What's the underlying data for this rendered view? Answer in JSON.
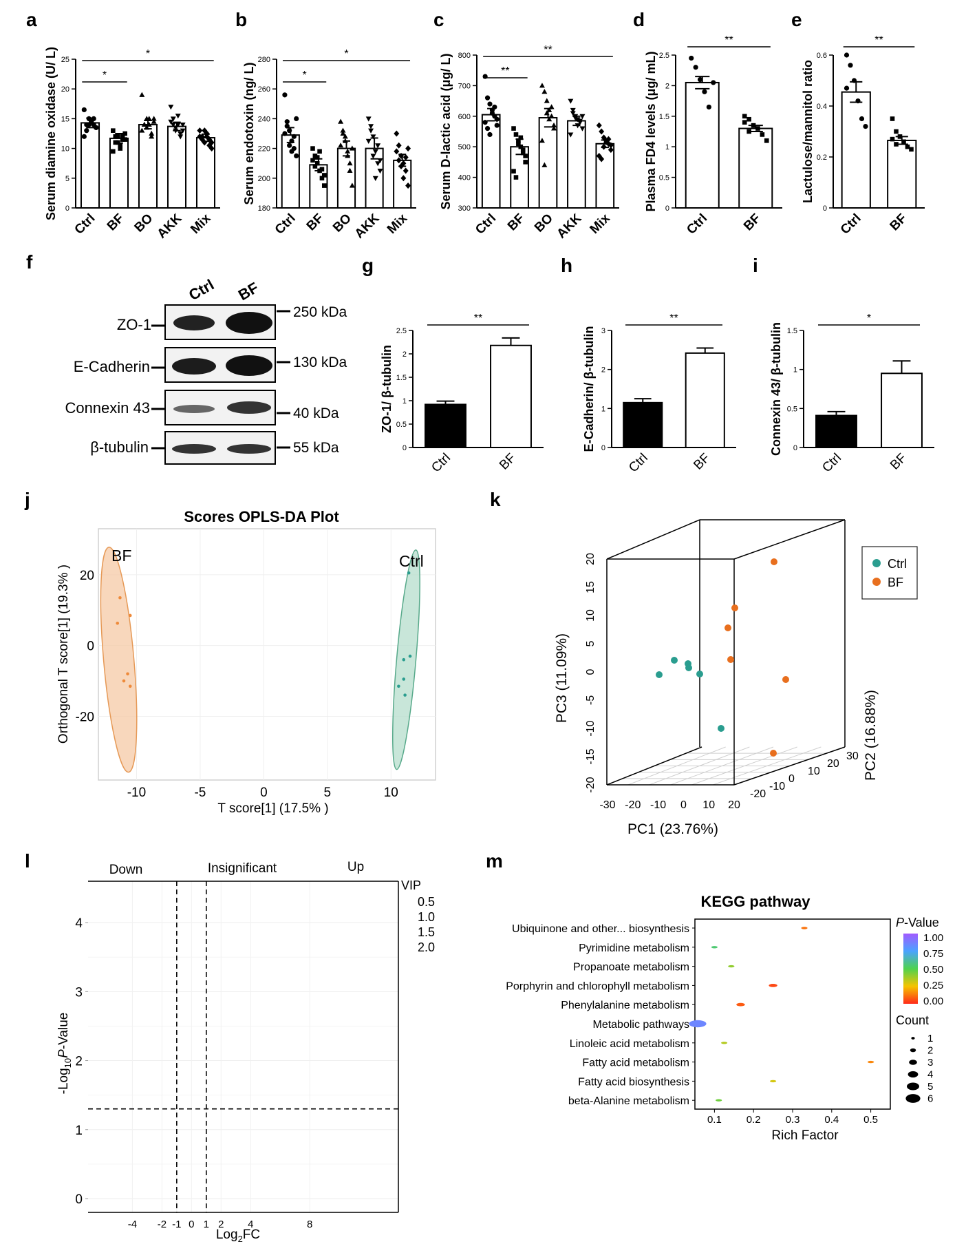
{
  "chart_data": [
    {
      "id": "a",
      "letter": "a",
      "type": "bar",
      "ylabel": "Serum diamine oxidase (U/ L)",
      "categories": [
        "Ctrl",
        "BF",
        "BO",
        "AKK",
        "Mix"
      ],
      "values": [
        14.3,
        11.7,
        14.0,
        13.7,
        11.8
      ],
      "errors": [
        0.8,
        0.8,
        0.7,
        0.7,
        0.6
      ],
      "ylim": [
        0,
        25
      ],
      "yticks": [
        0,
        5,
        10,
        15,
        20,
        25
      ],
      "points": [
        [
          16.5,
          13,
          14,
          14.5,
          15,
          13.5,
          12,
          14,
          15,
          14.5,
          14,
          13.5
        ],
        [
          13,
          12,
          11,
          10,
          11.5,
          12.5,
          9.5,
          11,
          12,
          10.5,
          12,
          11.5
        ],
        [
          19,
          14,
          13.5,
          15,
          12,
          14.5,
          13,
          14,
          15,
          14,
          12.5,
          15
        ],
        [
          17,
          15,
          13.5,
          14,
          12,
          13,
          14.5,
          14,
          13,
          15.5,
          12.5,
          14
        ],
        [
          13,
          12,
          11,
          12.5,
          11.5,
          10,
          12,
          11.5,
          13,
          12,
          10.5,
          11
        ]
      ],
      "sig": [
        {
          "from": 0,
          "to": 1,
          "label": "*"
        },
        {
          "from": 0,
          "to": 4,
          "label": "*"
        }
      ]
    },
    {
      "id": "b",
      "letter": "b",
      "type": "bar",
      "ylabel": "Serum endotoxin (ng/ L)",
      "categories": [
        "Ctrl",
        "BF",
        "BO",
        "AKK",
        "Mix"
      ],
      "values": [
        229,
        209,
        220,
        220,
        212
      ],
      "errors": [
        5,
        4,
        5,
        7,
        4
      ],
      "ylim": [
        180,
        280
      ],
      "yticks": [
        180,
        200,
        220,
        240,
        260,
        280
      ],
      "points": [
        [
          256,
          238,
          232,
          225,
          220,
          215,
          230,
          235,
          222,
          218,
          228,
          240
        ],
        [
          220,
          215,
          210,
          205,
          200,
          195,
          212,
          208,
          214,
          218,
          206,
          202
        ],
        [
          238,
          230,
          225,
          218,
          210,
          195,
          222,
          232,
          228,
          215,
          205,
          220
        ],
        [
          240,
          235,
          228,
          218,
          210,
          205,
          225,
          232,
          215,
          200,
          222,
          212
        ],
        [
          230,
          222,
          215,
          210,
          205,
          195,
          218,
          212,
          208,
          200,
          214,
          220
        ]
      ],
      "sig": [
        {
          "from": 0,
          "to": 1,
          "label": "*"
        },
        {
          "from": 0,
          "to": 4,
          "label": "*"
        }
      ]
    },
    {
      "id": "c",
      "letter": "c",
      "type": "bar",
      "ylabel": "Serum D-lactic acid (μg/ L)",
      "categories": [
        "Ctrl",
        "BF",
        "BO",
        "AKK",
        "Mix"
      ],
      "values": [
        605,
        500,
        595,
        585,
        510
      ],
      "errors": [
        20,
        25,
        30,
        15,
        12
      ],
      "ylim": [
        300,
        800
      ],
      "yticks": [
        300,
        400,
        500,
        600,
        700,
        800
      ],
      "points": [
        [
          730,
          660,
          640,
          620,
          600,
          590,
          580,
          560,
          540,
          610,
          630,
          570
        ],
        [
          560,
          540,
          520,
          500,
          480,
          450,
          420,
          400,
          510,
          530,
          490,
          470
        ],
        [
          700,
          680,
          650,
          620,
          600,
          560,
          520,
          440,
          610,
          590,
          630,
          570
        ],
        [
          650,
          620,
          600,
          590,
          580,
          560,
          540,
          610,
          595,
          570,
          585,
          600
        ],
        [
          570,
          550,
          530,
          520,
          510,
          490,
          470,
          460,
          500,
          515,
          525,
          505
        ]
      ],
      "sig": [
        {
          "from": 0,
          "to": 1,
          "label": "**"
        },
        {
          "from": 0,
          "to": 4,
          "label": "**"
        }
      ]
    },
    {
      "id": "d",
      "letter": "d",
      "type": "bar",
      "ylabel": "Plasma FD4 levels (μg/ mL)",
      "categories": [
        "Ctrl",
        "BF"
      ],
      "values": [
        2.05,
        1.3
      ],
      "errors": [
        0.1,
        0.05
      ],
      "ylim": [
        0,
        2.5
      ],
      "yticks": [
        0,
        0.5,
        1.0,
        1.5,
        2.0,
        2.5
      ],
      "points": [
        [
          2.45,
          2.3,
          2.1,
          1.9,
          1.65,
          2.05
        ],
        [
          1.5,
          1.45,
          1.35,
          1.3,
          1.2,
          1.1,
          1.4,
          1.25
        ]
      ],
      "sig": [
        {
          "from": 0,
          "to": 1,
          "label": "**"
        }
      ]
    },
    {
      "id": "e",
      "letter": "e",
      "type": "bar",
      "ylabel": "Lactulose/mannitol ratio",
      "categories": [
        "Ctrl",
        "BF"
      ],
      "values": [
        0.455,
        0.265
      ],
      "errors": [
        0.04,
        0.015
      ],
      "ylim": [
        0,
        0.6
      ],
      "yticks": [
        0,
        0.2,
        0.4,
        0.6
      ],
      "points": [
        [
          0.6,
          0.56,
          0.5,
          0.42,
          0.35,
          0.32,
          0.47
        ],
        [
          0.35,
          0.3,
          0.28,
          0.26,
          0.24,
          0.23,
          0.27,
          0.25
        ]
      ],
      "sig": [
        {
          "from": 0,
          "to": 1,
          "label": "**"
        }
      ]
    },
    {
      "id": "g",
      "letter": "g",
      "type": "bar",
      "ylabel": "ZO-1/ β-tubulin",
      "categories": [
        "Ctrl",
        "BF"
      ],
      "values": [
        0.92,
        2.18
      ],
      "errors": [
        0.07,
        0.16
      ],
      "fills": [
        "#000000",
        "#ffffff"
      ],
      "ylim": [
        0,
        2.5
      ],
      "yticks": [
        0,
        0.5,
        1.0,
        1.5,
        2.0,
        2.5
      ],
      "sig": [
        {
          "from": 0,
          "to": 1,
          "label": "**"
        }
      ]
    },
    {
      "id": "h",
      "letter": "h",
      "type": "bar",
      "ylabel": "E-Cadherin/ β-tubulin",
      "categories": [
        "Ctrl",
        "BF"
      ],
      "values": [
        1.15,
        2.42
      ],
      "errors": [
        0.1,
        0.13
      ],
      "fills": [
        "#000000",
        "#ffffff"
      ],
      "ylim": [
        0,
        3
      ],
      "yticks": [
        0,
        1,
        2,
        3
      ],
      "sig": [
        {
          "from": 0,
          "to": 1,
          "label": "**"
        }
      ]
    },
    {
      "id": "i",
      "letter": "i",
      "type": "bar",
      "ylabel": "Connexin 43/ β-tubulin",
      "categories": [
        "Ctrl",
        "BF"
      ],
      "values": [
        0.41,
        0.95
      ],
      "errors": [
        0.05,
        0.16
      ],
      "fills": [
        "#000000",
        "#ffffff"
      ],
      "ylim": [
        0,
        1.5
      ],
      "yticks": [
        0,
        0.5,
        1.0,
        1.5
      ],
      "sig": [
        {
          "from": 0,
          "to": 1,
          "label": "*"
        }
      ]
    },
    {
      "id": "j",
      "letter": "j",
      "type": "scatter",
      "title": "Scores OPLS-DA Plot",
      "xlabel": "T score[1] (17.5% )",
      "ylabel": "Orthogonal T score[1] (19.3% )",
      "xlim": [
        -13,
        13.5
      ],
      "ylim": [
        -38,
        33
      ],
      "xticks": [
        -10,
        -5,
        0,
        5,
        10
      ],
      "yticks": [
        -20,
        0,
        20
      ],
      "groups": [
        {
          "name": "BF",
          "color": "#ee8a3a",
          "points": [
            [
              -11.3,
              13.5
            ],
            [
              -10.5,
              8.5
            ],
            [
              -11.5,
              6.3
            ],
            [
              -10.7,
              -8
            ],
            [
              -11,
              -10
            ],
            [
              -10.5,
              -11.5
            ]
          ]
        },
        {
          "name": "Ctrl",
          "color": "#2a9d8f",
          "points": [
            [
              11.4,
              20.5
            ],
            [
              11.5,
              -3
            ],
            [
              11,
              -4
            ],
            [
              11,
              -9.5
            ],
            [
              10.6,
              -11.5
            ],
            [
              11.1,
              -14
            ]
          ]
        }
      ]
    },
    {
      "id": "k",
      "letter": "k",
      "type": "scatter",
      "title": "",
      "xlabel": "PC1 (23.76%)",
      "ylabel": "PC3 (11.09%)",
      "zlabel": "PC2 (16.88%)",
      "x_ticks": [
        -30,
        -20,
        -10,
        0,
        10,
        20
      ],
      "y_ticks": [
        -20,
        -15,
        -10,
        -5,
        0,
        5,
        10,
        15,
        20
      ],
      "z_ticks": [
        -20,
        -10,
        0,
        10,
        20,
        30
      ],
      "legend": [
        {
          "name": "Ctrl",
          "color": "#2a9d8f"
        },
        {
          "name": "BF",
          "color": "#e86f1e"
        }
      ]
    },
    {
      "id": "l",
      "letter": "l",
      "type": "scatter",
      "xlabel": "Log2FC",
      "ylabel": "-Log10 P-Value",
      "xlim": [
        -7,
        14
      ],
      "ylim": [
        -0.2,
        4.6
      ],
      "xtick_labels": [
        "-4",
        "-2",
        "-1",
        "0",
        "1",
        "2",
        "4",
        "8"
      ],
      "xtick_values": [
        -4,
        -2,
        -1,
        0,
        1,
        2,
        4,
        8
      ],
      "yticks": [
        0,
        1,
        2,
        3,
        4
      ],
      "threshold_x": [
        -1,
        1
      ],
      "threshold_y": 1.3,
      "regions": [
        "Down",
        "Insignificant",
        "Up"
      ],
      "legend_title": "VIP",
      "legend_values": [
        "0.5",
        "1.0",
        "1.5",
        "2.0"
      ]
    },
    {
      "id": "m",
      "letter": "m",
      "type": "scatter",
      "title": "KEGG pathway",
      "xlabel": "Rich Factor",
      "xlim": [
        0.05,
        0.55
      ],
      "xticks": [
        0.1,
        0.2,
        0.3,
        0.4,
        0.5
      ],
      "pathways": [
        "Ubiquinone and other... biosynthesis",
        "Pyrimidine metabolism",
        "Propanoate metabolism",
        "Porphyrin and chlorophyll metabolism",
        "Phenylalanine metabolism",
        "Metabolic pathways",
        "Linoleic acid metabolism",
        "Fatty acid metabolism",
        "Fatty acid biosynthesis",
        "beta-Alanine metabolism"
      ],
      "rich_factor": [
        0.33,
        0.1,
        0.143,
        0.25,
        0.167,
        0.057,
        0.125,
        0.5,
        0.25,
        0.111
      ],
      "count": [
        1,
        1,
        1,
        2,
        2,
        6,
        1,
        1,
        1,
        1
      ],
      "pvalue": [
        0.12,
        0.55,
        0.4,
        0.05,
        0.08,
        0.85,
        0.35,
        0.15,
        0.3,
        0.45
      ],
      "colorbar_title": "P-Value",
      "colorbar_ticks": [
        "1.00",
        "0.75",
        "0.50",
        "0.25",
        "0.00"
      ],
      "size_title": "Count",
      "size_ticks": [
        "1",
        "2",
        "3",
        "4",
        "5",
        "6"
      ]
    }
  ],
  "western_blot": {
    "letter": "f",
    "lanes": [
      "Ctrl",
      "BF"
    ],
    "proteins": [
      "ZO-1",
      "E-Cadherin",
      "Connexin 43",
      "β-tubulin"
    ],
    "sizes": [
      "250 kDa",
      "130 kDa",
      "40 kDa",
      "55 kDa"
    ]
  },
  "colors": {
    "ctrl": "#2a9d8f",
    "bf_k": "#e86f1e",
    "bf_j": "#ee8a3a"
  }
}
